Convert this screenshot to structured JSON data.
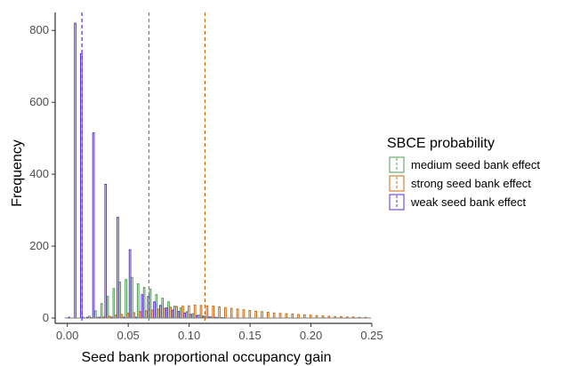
{
  "chart_data": {
    "type": "bar",
    "title": "",
    "xlabel": "Seed bank proportional occupancy gain",
    "ylabel": "Frequency",
    "xlim": [
      -0.01,
      0.25
    ],
    "ylim": [
      0,
      850
    ],
    "x_ticks": [
      0.0,
      0.05,
      0.1,
      0.15,
      0.2,
      0.25
    ],
    "x_tick_labels": [
      "0.00",
      "0.05",
      "0.10",
      "0.15",
      "0.20",
      "0.25"
    ],
    "y_ticks": [
      0,
      200,
      400,
      600,
      800
    ],
    "y_tick_labels": [
      "0",
      "200",
      "400",
      "600",
      "800"
    ],
    "grid": false,
    "bin_width": 0.005,
    "legend": {
      "title": "SBCE probability",
      "position": "right"
    },
    "series": [
      {
        "name": "medium seed bank effect",
        "color": "#4f9a57",
        "mean_line": 0.067,
        "bins": [
          {
            "x": 0.015,
            "y": 2
          },
          {
            "x": 0.02,
            "y": 5
          },
          {
            "x": 0.025,
            "y": 20
          },
          {
            "x": 0.03,
            "y": 40
          },
          {
            "x": 0.035,
            "y": 60
          },
          {
            "x": 0.04,
            "y": 82
          },
          {
            "x": 0.045,
            "y": 100
          },
          {
            "x": 0.05,
            "y": 107
          },
          {
            "x": 0.055,
            "y": 113
          },
          {
            "x": 0.06,
            "y": 95
          },
          {
            "x": 0.065,
            "y": 85
          },
          {
            "x": 0.07,
            "y": 80
          },
          {
            "x": 0.075,
            "y": 65
          },
          {
            "x": 0.08,
            "y": 55
          },
          {
            "x": 0.085,
            "y": 45
          },
          {
            "x": 0.09,
            "y": 33
          },
          {
            "x": 0.095,
            "y": 28
          },
          {
            "x": 0.1,
            "y": 18
          },
          {
            "x": 0.105,
            "y": 12
          },
          {
            "x": 0.11,
            "y": 8
          },
          {
            "x": 0.115,
            "y": 5
          },
          {
            "x": 0.12,
            "y": 3
          },
          {
            "x": 0.125,
            "y": 2
          },
          {
            "x": 0.13,
            "y": 1
          }
        ]
      },
      {
        "name": "strong seed bank effect",
        "color": "#c8690f",
        "mean_line": 0.113,
        "bins": [
          {
            "x": 0.02,
            "y": 1
          },
          {
            "x": 0.025,
            "y": 2
          },
          {
            "x": 0.03,
            "y": 3
          },
          {
            "x": 0.035,
            "y": 5
          },
          {
            "x": 0.04,
            "y": 8
          },
          {
            "x": 0.045,
            "y": 10
          },
          {
            "x": 0.05,
            "y": 13
          },
          {
            "x": 0.055,
            "y": 15
          },
          {
            "x": 0.06,
            "y": 18
          },
          {
            "x": 0.065,
            "y": 20
          },
          {
            "x": 0.07,
            "y": 22
          },
          {
            "x": 0.075,
            "y": 25
          },
          {
            "x": 0.08,
            "y": 27
          },
          {
            "x": 0.085,
            "y": 30
          },
          {
            "x": 0.09,
            "y": 32
          },
          {
            "x": 0.095,
            "y": 33
          },
          {
            "x": 0.1,
            "y": 34
          },
          {
            "x": 0.105,
            "y": 36
          },
          {
            "x": 0.11,
            "y": 35
          },
          {
            "x": 0.115,
            "y": 34
          },
          {
            "x": 0.12,
            "y": 33
          },
          {
            "x": 0.125,
            "y": 31
          },
          {
            "x": 0.13,
            "y": 29
          },
          {
            "x": 0.135,
            "y": 27
          },
          {
            "x": 0.14,
            "y": 25
          },
          {
            "x": 0.145,
            "y": 23
          },
          {
            "x": 0.15,
            "y": 21
          },
          {
            "x": 0.155,
            "y": 19
          },
          {
            "x": 0.16,
            "y": 18
          },
          {
            "x": 0.165,
            "y": 16
          },
          {
            "x": 0.17,
            "y": 14
          },
          {
            "x": 0.175,
            "y": 13
          },
          {
            "x": 0.18,
            "y": 12
          },
          {
            "x": 0.185,
            "y": 11
          },
          {
            "x": 0.19,
            "y": 10
          },
          {
            "x": 0.195,
            "y": 9
          },
          {
            "x": 0.2,
            "y": 8
          },
          {
            "x": 0.205,
            "y": 7
          },
          {
            "x": 0.21,
            "y": 6
          },
          {
            "x": 0.215,
            "y": 5
          },
          {
            "x": 0.22,
            "y": 4
          },
          {
            "x": 0.225,
            "y": 4
          },
          {
            "x": 0.23,
            "y": 3
          },
          {
            "x": 0.235,
            "y": 3
          },
          {
            "x": 0.24,
            "y": 2
          },
          {
            "x": 0.245,
            "y": 2
          }
        ]
      },
      {
        "name": "weak seed bank effect",
        "color": "#5a2bd8",
        "mean_line": 0.012,
        "bins": [
          {
            "x": 0.0,
            "y": 2
          },
          {
            "x": 0.005,
            "y": 820
          },
          {
            "x": 0.01,
            "y": 735
          },
          {
            "x": 0.015,
            "y": 2
          },
          {
            "x": 0.02,
            "y": 515
          },
          {
            "x": 0.025,
            "y": 2
          },
          {
            "x": 0.03,
            "y": 372
          },
          {
            "x": 0.035,
            "y": 2
          },
          {
            "x": 0.04,
            "y": 280
          },
          {
            "x": 0.045,
            "y": 2
          },
          {
            "x": 0.05,
            "y": 190
          },
          {
            "x": 0.055,
            "y": 2
          },
          {
            "x": 0.06,
            "y": 65
          },
          {
            "x": 0.065,
            "y": 60
          },
          {
            "x": 0.07,
            "y": 45
          },
          {
            "x": 0.075,
            "y": 35
          },
          {
            "x": 0.08,
            "y": 28
          },
          {
            "x": 0.085,
            "y": 22
          },
          {
            "x": 0.09,
            "y": 18
          },
          {
            "x": 0.095,
            "y": 14
          },
          {
            "x": 0.1,
            "y": 10
          },
          {
            "x": 0.105,
            "y": 7
          },
          {
            "x": 0.11,
            "y": 5
          },
          {
            "x": 0.115,
            "y": 3
          },
          {
            "x": 0.12,
            "y": 2
          },
          {
            "x": 0.125,
            "y": 1
          }
        ]
      }
    ]
  }
}
